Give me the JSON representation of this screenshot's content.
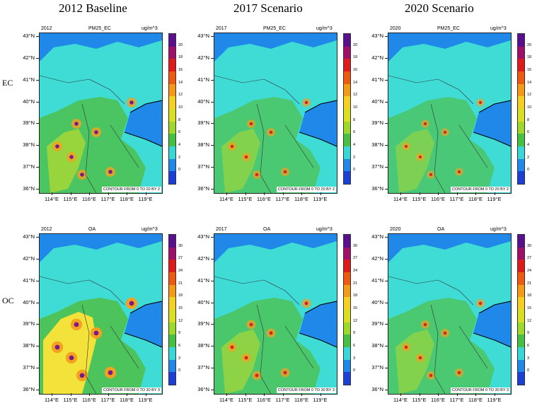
{
  "column_titles": [
    "2012 Baseline",
    "2017 Scenario",
    "2020 Scenario"
  ],
  "row_labels": [
    "EC",
    "OC"
  ],
  "units": "ug/m^3",
  "lat_labels": [
    "43°N",
    "42°N",
    "41°N",
    "40°N",
    "39°N",
    "38°N",
    "37°N",
    "36°N"
  ],
  "lon_labels": [
    "114°E",
    "115°E",
    "116°E",
    "117°E",
    "118°E",
    "119°E"
  ],
  "rows": [
    {
      "variable": "PM25_EC",
      "contour": "CONTOUR FROM 0 TO 20 BY 2",
      "colorbar_labels": [
        "20",
        "18",
        "16",
        "14",
        "12",
        "10",
        "8",
        "6",
        "4",
        "2",
        "0"
      ],
      "panels": [
        {
          "year": "2012"
        },
        {
          "year": "2017"
        },
        {
          "year": "2020"
        }
      ]
    },
    {
      "variable": "OA",
      "contour": "CONTOUR FROM 0 TO 30 BY 3",
      "colorbar_labels": [
        "30",
        "27",
        "24",
        "21",
        "18",
        "15",
        "12",
        "9",
        "6",
        "3",
        "0"
      ],
      "panels": [
        {
          "year": "2012"
        },
        {
          "year": "2017"
        },
        {
          "year": "2020"
        }
      ]
    }
  ],
  "colorbar_colors": [
    "#5a0f8e",
    "#a0106a",
    "#e01a1a",
    "#f05a10",
    "#f59a15",
    "#f5d020",
    "#d8e020",
    "#9ed82a",
    "#46c040",
    "#38d8d8",
    "#1f88e8",
    "#1c3fd8"
  ],
  "map_colors": {
    "sea": "#1f88e8",
    "land_low": "#3fdcd6",
    "land_mid": "#4fbf45",
    "land_high": "#b9db2c",
    "yellow": "#f2e23a",
    "orange": "#f5a020",
    "red": "#e02020",
    "purple": "#7a1a8a"
  }
}
